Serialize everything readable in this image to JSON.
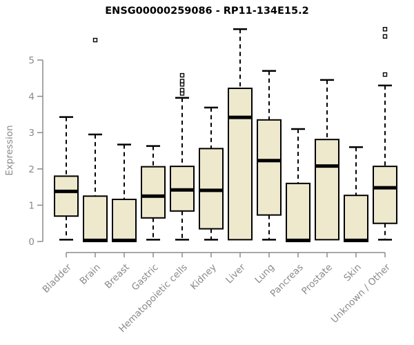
{
  "chart_data": {
    "type": "box",
    "title": "ENSG00000259086 - RP11-134E15.2",
    "ylabel": "Expression",
    "xlabel": "",
    "yticks": [
      0,
      1,
      2,
      3,
      4,
      5
    ],
    "ylim": [
      0,
      5.9
    ],
    "grid": false,
    "legend_position": "none",
    "outlier_marker": "open-square",
    "categories": [
      "Bladder",
      "Brain",
      "Breast",
      "Gastric",
      "Hematopoietic cells",
      "Kidney",
      "Liver",
      "Lung",
      "Pancreas",
      "Prostate",
      "Skin",
      "Unknown / Other"
    ],
    "boxes": [
      {
        "category": "Bladder",
        "low": 0.05,
        "q1": 0.7,
        "median": 1.38,
        "q3": 1.8,
        "high": 3.43,
        "outliers": []
      },
      {
        "category": "Brain",
        "low": 0.0,
        "q1": 0.0,
        "median": 0.03,
        "q3": 1.25,
        "high": 2.95,
        "outliers": [
          5.55
        ]
      },
      {
        "category": "Breast",
        "low": 0.0,
        "q1": 0.0,
        "median": 0.03,
        "q3": 1.16,
        "high": 2.67,
        "outliers": []
      },
      {
        "category": "Gastric",
        "low": 0.05,
        "q1": 0.65,
        "median": 1.25,
        "q3": 2.06,
        "high": 2.63,
        "outliers": []
      },
      {
        "category": "Hematopoietic cells",
        "low": 0.05,
        "q1": 0.84,
        "median": 1.42,
        "q3": 2.07,
        "high": 3.96,
        "outliers": [
          4.08,
          4.17,
          4.33,
          4.42,
          4.58
        ]
      },
      {
        "category": "Kidney",
        "low": 0.05,
        "q1": 0.35,
        "median": 1.41,
        "q3": 2.56,
        "high": 3.69,
        "outliers": []
      },
      {
        "category": "Liver",
        "low": 0.05,
        "q1": 0.05,
        "median": 3.42,
        "q3": 4.22,
        "high": 5.85,
        "outliers": []
      },
      {
        "category": "Lung",
        "low": 0.05,
        "q1": 0.73,
        "median": 2.23,
        "q3": 3.35,
        "high": 4.7,
        "outliers": []
      },
      {
        "category": "Pancreas",
        "low": 0.0,
        "q1": 0.0,
        "median": 0.03,
        "q3": 1.6,
        "high": 3.1,
        "outliers": []
      },
      {
        "category": "Prostate",
        "low": 0.05,
        "q1": 0.05,
        "median": 2.08,
        "q3": 2.81,
        "high": 4.45,
        "outliers": []
      },
      {
        "category": "Skin",
        "low": 0.0,
        "q1": 0.0,
        "median": 0.03,
        "q3": 1.27,
        "high": 2.6,
        "outliers": []
      },
      {
        "category": "Unknown / Other",
        "low": 0.05,
        "q1": 0.5,
        "median": 1.48,
        "q3": 2.07,
        "high": 4.3,
        "outliers": [
          4.6,
          5.65,
          5.85
        ]
      }
    ],
    "colors": {
      "box_fill": "#EEE8CD",
      "box_border": "#000000",
      "median": "#000000",
      "whisker": "#000000",
      "axis": "#8a8a8a",
      "tick_label": "#8a8a8a",
      "title": "#000000",
      "background": "#ffffff"
    }
  }
}
